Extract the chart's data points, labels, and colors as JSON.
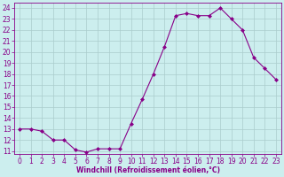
{
  "x": [
    0,
    1,
    2,
    3,
    4,
    5,
    6,
    7,
    8,
    9,
    10,
    11,
    12,
    13,
    14,
    15,
    16,
    17,
    18,
    19,
    20,
    21,
    22,
    23
  ],
  "y": [
    13,
    13,
    12.8,
    12,
    12,
    11.1,
    10.9,
    11.2,
    11.2,
    11.2,
    13.5,
    15.7,
    18,
    20.5,
    23.3,
    23.5,
    23.3,
    23.3,
    24,
    23,
    22,
    19.5,
    18.5,
    17.5
  ],
  "line_color": "#880088",
  "marker": "D",
  "marker_size": 2.0,
  "bg_color": "#cceeee",
  "grid_color": "#aacccc",
  "xlabel": "Windchill (Refroidissement éolien,°C)",
  "xlabel_color": "#880088",
  "tick_color": "#880088",
  "ylim": [
    10.7,
    24.5
  ],
  "yticks": [
    11,
    12,
    13,
    14,
    15,
    16,
    17,
    18,
    19,
    20,
    21,
    22,
    23,
    24
  ],
  "xlim": [
    -0.5,
    23.5
  ],
  "xticks": [
    0,
    1,
    2,
    3,
    4,
    5,
    6,
    7,
    8,
    9,
    10,
    11,
    12,
    13,
    14,
    15,
    16,
    17,
    18,
    19,
    20,
    21,
    22,
    23
  ],
  "spine_color": "#880088",
  "tick_fontsize": 5.5,
  "xlabel_fontsize": 5.5
}
